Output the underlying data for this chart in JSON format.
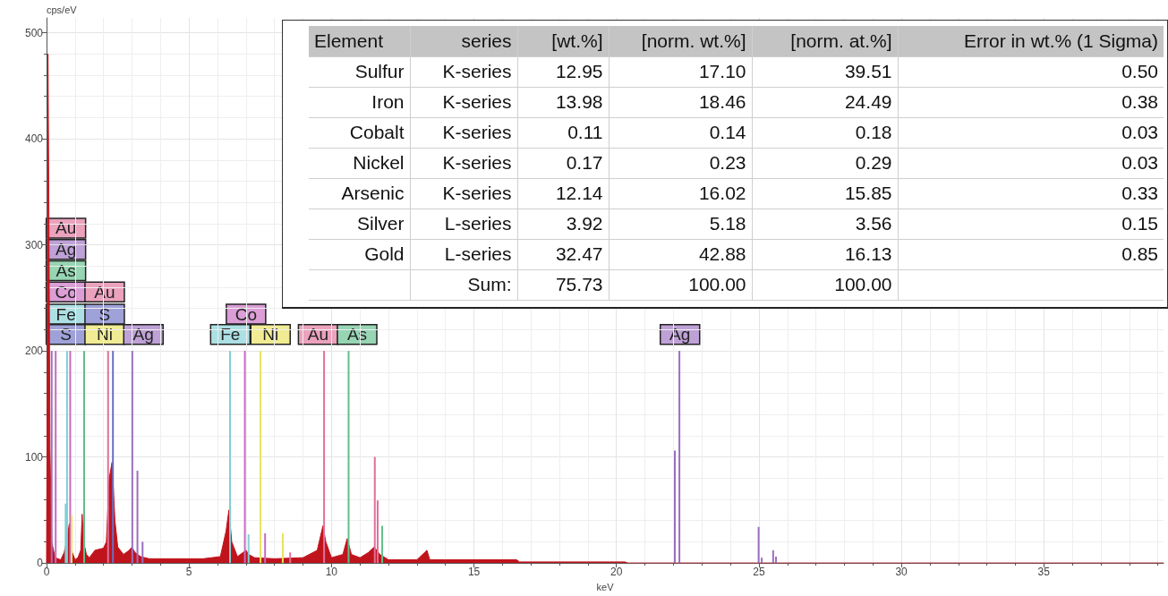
{
  "chart_data": {
    "type": "area",
    "xlabel": "keV",
    "ylabel": "cps/eV",
    "xlim": [
      0,
      39.2
    ],
    "ylim": [
      0,
      514
    ],
    "xticks": [
      0,
      5,
      10,
      15,
      20,
      25,
      30,
      35
    ],
    "yticks": [
      0,
      100,
      200,
      300,
      400,
      500
    ],
    "grid": true,
    "legend": false,
    "series": [
      {
        "color": "#c0141c",
        "x": [
          0,
          0.03,
          0.05,
          0.08,
          0.12,
          0.18,
          0.3,
          0.5,
          0.62,
          0.7,
          0.8,
          0.9,
          1.0,
          1.1,
          1.2,
          1.25,
          1.3,
          1.4,
          1.5,
          1.7,
          2.0,
          2.1,
          2.2,
          2.3,
          2.4,
          2.5,
          2.7,
          2.9,
          3.0,
          3.1,
          3.3,
          3.6,
          4.5,
          5.5,
          6.1,
          6.3,
          6.4,
          6.5,
          6.7,
          7.0,
          7.1,
          7.3,
          8.0,
          9.0,
          9.5,
          9.7,
          9.8,
          10.0,
          10.4,
          10.55,
          10.7,
          11.0,
          11.3,
          11.5,
          11.7,
          12.0,
          13.0,
          13.35,
          13.45,
          14.0,
          16.5,
          16.6,
          20.3,
          20.4,
          39.2
        ],
        "values": [
          0,
          200,
          480,
          345,
          107,
          20,
          5,
          3,
          10,
          20,
          37,
          10,
          3,
          5,
          12,
          46,
          20,
          8,
          5,
          12,
          14,
          20,
          80,
          95,
          40,
          15,
          8,
          12,
          15,
          10,
          6,
          4,
          4,
          4,
          6,
          30,
          50,
          20,
          6,
          12,
          8,
          5,
          4,
          5,
          12,
          35,
          20,
          5,
          8,
          23,
          8,
          5,
          10,
          15,
          8,
          3,
          3,
          12,
          3,
          3,
          3,
          1,
          1,
          0,
          0
        ]
      },
      {
        "type": "bar",
        "name": "S",
        "color": "#6b6fc4",
        "x": [
          2.33
        ],
        "values": [
          200
        ]
      },
      {
        "type": "bar",
        "name": "Fe",
        "color": "#7fcfd6",
        "x": [
          0.67,
          0.72,
          6.44,
          7.09
        ],
        "values": [
          56,
          200,
          200,
          27
        ]
      },
      {
        "type": "bar",
        "name": "Co",
        "color": "#c86ac0",
        "x": [
          0.32,
          0.83,
          6.96,
          7.67
        ],
        "values": [
          200,
          200,
          200,
          28
        ]
      },
      {
        "type": "bar",
        "name": "Ni",
        "color": "#e9e25a",
        "x": [
          0.88,
          7.51,
          8.29
        ],
        "values": [
          45,
          200,
          28
        ]
      },
      {
        "type": "bar",
        "name": "As",
        "color": "#5fbf8a",
        "x": [
          1.32,
          10.6,
          11.78
        ],
        "values": [
          200,
          200,
          35
        ]
      },
      {
        "type": "bar",
        "name": "Ag",
        "color": "#9b6fc0",
        "x": [
          0.18,
          3.01,
          3.19,
          3.37,
          22.05,
          22.21,
          24.99,
          25.1,
          25.5,
          25.6
        ],
        "values": [
          200,
          200,
          87,
          20,
          106,
          200,
          34,
          5,
          12,
          6
        ]
      },
      {
        "type": "bar",
        "name": "Au",
        "color": "#e0709a",
        "x": [
          2.16,
          8.55,
          9.74,
          11.52,
          11.62
        ],
        "values": [
          200,
          10,
          200,
          100,
          59
        ]
      }
    ],
    "annotations": [
      "Element",
      "series",
      "[wt.%]",
      "[norm. wt.%]",
      "[norm. at.%]",
      "Error in wt.% (1 Sigma)",
      "Sulfur",
      "K-series",
      "12.95",
      "17.10",
      "39.51",
      "0.50",
      "Iron",
      "K-series",
      "13.98",
      "18.46",
      "24.49",
      "0.38",
      "Cobalt",
      "K-series",
      "0.11",
      "0.14",
      "0.18",
      "0.03",
      "Nickel",
      "K-series",
      "0.17",
      "0.23",
      "0.29",
      "0.03",
      "Arsenic",
      "K-series",
      "12.14",
      "16.02",
      "15.85",
      "0.33",
      "Silver",
      "L-series",
      "3.92",
      "5.18",
      "3.56",
      "0.15",
      "Gold",
      "L-series",
      "32.47",
      "42.88",
      "16.13",
      "0.85",
      "Sum:",
      "75.73",
      "100.00",
      "100.00"
    ]
  }
}
